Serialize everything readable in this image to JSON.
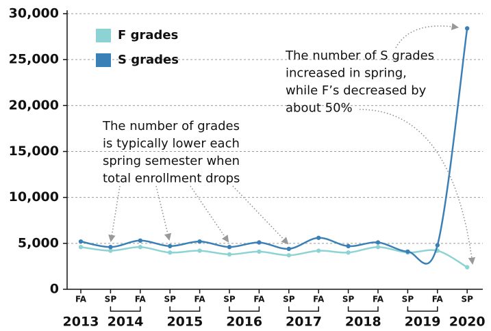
{
  "chart_data": {
    "type": "line",
    "categories": [
      "FA",
      "SP",
      "FA",
      "SP",
      "FA",
      "SP",
      "FA",
      "SP",
      "FA",
      "SP",
      "FA",
      "SP",
      "FA",
      "SP"
    ],
    "x_groups": [
      "2013",
      "2014",
      "2015",
      "2016",
      "2017",
      "2018",
      "2019",
      "2020"
    ],
    "series": [
      {
        "name": "F grades",
        "color": "#8dd3d3",
        "values": [
          4600,
          4200,
          4600,
          4000,
          4200,
          3800,
          4100,
          3700,
          4200,
          4000,
          4600,
          4000,
          4200,
          2400
        ]
      },
      {
        "name": "S grades",
        "color": "#3a7fb5",
        "values": [
          5200,
          4600,
          5300,
          4700,
          5200,
          4600,
          5100,
          4400,
          5600,
          4700,
          5100,
          4100,
          4800,
          28400
        ]
      }
    ],
    "ylim": [
      0,
      30000
    ],
    "yticks": [
      0,
      {
        "value": 5000,
        "label": "5,000"
      },
      {
        "value": 10000,
        "label": "10,000"
      },
      {
        "value": 15000,
        "label": "15,000"
      },
      {
        "value": 20000,
        "label": "20,000"
      },
      {
        "value": 25000,
        "label": "25,000"
      },
      {
        "value": 30000,
        "label": "30,000"
      }
    ],
    "grid": true,
    "legend": "top-left",
    "annotations": [
      {
        "lines": [
          "The number of grades",
          "is typically lower each",
          "spring semester when",
          "total enrollment drops"
        ]
      },
      {
        "lines": [
          "The number of S grades",
          "increased in spring,",
          "while F’s decreased by",
          "about 50%"
        ]
      }
    ]
  }
}
